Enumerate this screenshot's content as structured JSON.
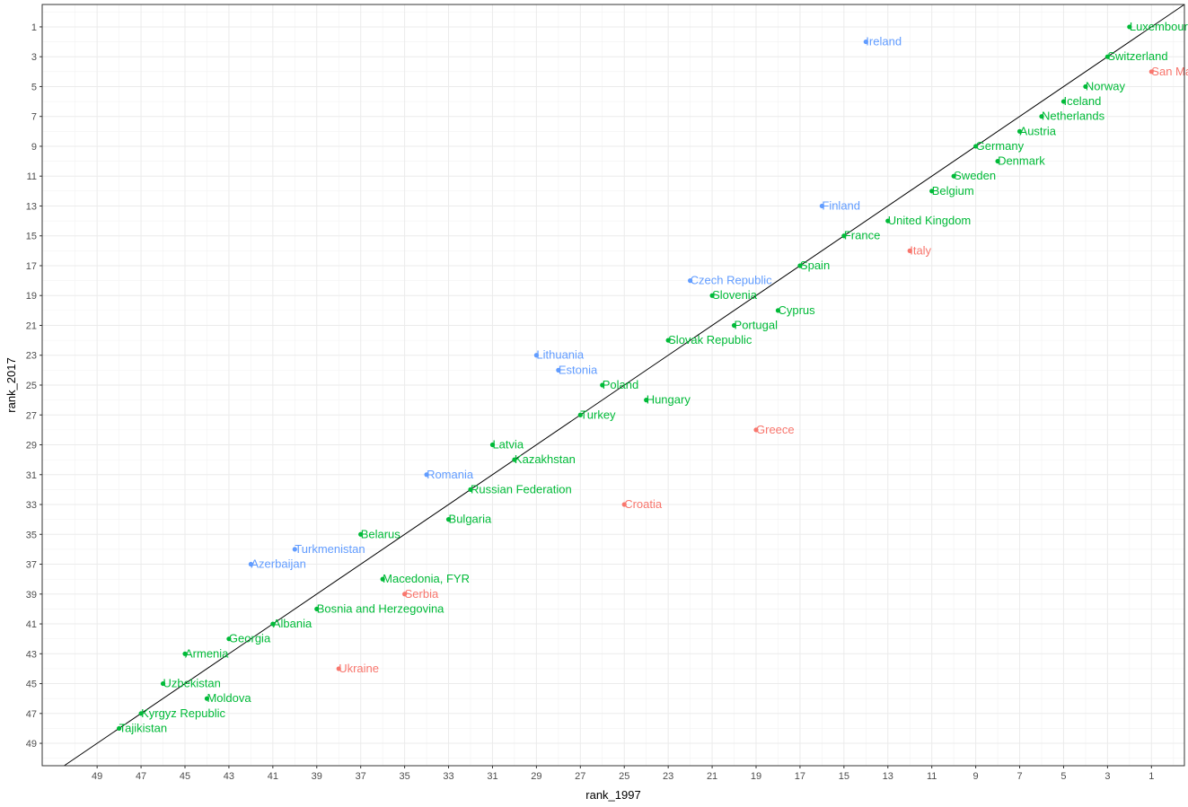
{
  "chart_data": {
    "type": "scatter",
    "xlabel": "rank_1997",
    "ylabel": "rank_2017",
    "x_reversed": true,
    "y_reversed": true,
    "xlim": [
      -0.5,
      51.5
    ],
    "ylim": [
      -0.5,
      50.5
    ],
    "x_ticks": [
      49,
      47,
      45,
      43,
      41,
      39,
      37,
      35,
      33,
      31,
      29,
      27,
      25,
      23,
      21,
      19,
      17,
      15,
      13,
      11,
      9,
      7,
      5,
      3,
      1
    ],
    "y_ticks": [
      1,
      3,
      5,
      7,
      9,
      11,
      13,
      15,
      17,
      19,
      21,
      23,
      25,
      27,
      29,
      31,
      33,
      35,
      37,
      39,
      41,
      43,
      45,
      47,
      49
    ],
    "grid": true,
    "reference_line": "y = x",
    "colors": {
      "green": "#00BA38",
      "blue": "#619CFF",
      "red": "#F8766D"
    },
    "points": [
      {
        "label": "Luxembourg",
        "x": 2,
        "y": 1,
        "color": "green"
      },
      {
        "label": "Ireland",
        "x": 14,
        "y": 2,
        "color": "blue"
      },
      {
        "label": "Switzerland",
        "x": 3,
        "y": 3,
        "color": "green"
      },
      {
        "label": "San Mari",
        "x": 1,
        "y": 4,
        "color": "red"
      },
      {
        "label": "Norway",
        "x": 4,
        "y": 5,
        "color": "green"
      },
      {
        "label": "Iceland",
        "x": 5,
        "y": 6,
        "color": "green"
      },
      {
        "label": "Netherlands",
        "x": 6,
        "y": 7,
        "color": "green"
      },
      {
        "label": "Austria",
        "x": 7,
        "y": 8,
        "color": "green"
      },
      {
        "label": "Germany",
        "x": 9,
        "y": 9,
        "color": "green"
      },
      {
        "label": "Denmark",
        "x": 8,
        "y": 10,
        "color": "green"
      },
      {
        "label": "Sweden",
        "x": 10,
        "y": 11,
        "color": "green"
      },
      {
        "label": "Belgium",
        "x": 11,
        "y": 12,
        "color": "green"
      },
      {
        "label": "Finland",
        "x": 16,
        "y": 13,
        "color": "blue"
      },
      {
        "label": "United Kingdom",
        "x": 13,
        "y": 14,
        "color": "green"
      },
      {
        "label": "France",
        "x": 15,
        "y": 15,
        "color": "green"
      },
      {
        "label": "Italy",
        "x": 12,
        "y": 16,
        "color": "red"
      },
      {
        "label": "Spain",
        "x": 17,
        "y": 17,
        "color": "green"
      },
      {
        "label": "Czech Republic",
        "x": 22,
        "y": 18,
        "color": "blue"
      },
      {
        "label": "Slovenia",
        "x": 21,
        "y": 19,
        "color": "green"
      },
      {
        "label": "Cyprus",
        "x": 18,
        "y": 20,
        "color": "green"
      },
      {
        "label": "Portugal",
        "x": 20,
        "y": 21,
        "color": "green"
      },
      {
        "label": "Slovak Republic",
        "x": 23,
        "y": 22,
        "color": "green"
      },
      {
        "label": "Lithuania",
        "x": 29,
        "y": 23,
        "color": "blue"
      },
      {
        "label": "Estonia",
        "x": 28,
        "y": 24,
        "color": "blue"
      },
      {
        "label": "Poland",
        "x": 26,
        "y": 25,
        "color": "green"
      },
      {
        "label": "Hungary",
        "x": 24,
        "y": 26,
        "color": "green"
      },
      {
        "label": "Turkey",
        "x": 27,
        "y": 27,
        "color": "green"
      },
      {
        "label": "Greece",
        "x": 19,
        "y": 28,
        "color": "red"
      },
      {
        "label": "Latvia",
        "x": 31,
        "y": 29,
        "color": "green"
      },
      {
        "label": "Kazakhstan",
        "x": 30,
        "y": 30,
        "color": "green"
      },
      {
        "label": "Romania",
        "x": 34,
        "y": 31,
        "color": "blue"
      },
      {
        "label": "Russian Federation",
        "x": 32,
        "y": 32,
        "color": "green"
      },
      {
        "label": "Croatia",
        "x": 25,
        "y": 33,
        "color": "red"
      },
      {
        "label": "Bulgaria",
        "x": 33,
        "y": 34,
        "color": "green"
      },
      {
        "label": "Belarus",
        "x": 37,
        "y": 35,
        "color": "green"
      },
      {
        "label": "Turkmenistan",
        "x": 40,
        "y": 36,
        "color": "blue"
      },
      {
        "label": "Azerbaijan",
        "x": 42,
        "y": 37,
        "color": "blue"
      },
      {
        "label": "Macedonia, FYR",
        "x": 36,
        "y": 38,
        "color": "green"
      },
      {
        "label": "Serbia",
        "x": 35,
        "y": 39,
        "color": "red"
      },
      {
        "label": "Bosnia and Herzegovina",
        "x": 39,
        "y": 40,
        "color": "green"
      },
      {
        "label": "Albania",
        "x": 41,
        "y": 41,
        "color": "green"
      },
      {
        "label": "Georgia",
        "x": 43,
        "y": 42,
        "color": "green"
      },
      {
        "label": "Armenia",
        "x": 45,
        "y": 43,
        "color": "green"
      },
      {
        "label": "Ukraine",
        "x": 38,
        "y": 44,
        "color": "red"
      },
      {
        "label": "Uzbekistan",
        "x": 46,
        "y": 45,
        "color": "green"
      },
      {
        "label": "Moldova",
        "x": 44,
        "y": 46,
        "color": "green"
      },
      {
        "label": "Kyrgyz Republic",
        "x": 47,
        "y": 47,
        "color": "green"
      },
      {
        "label": "Tajikistan",
        "x": 48,
        "y": 48,
        "color": "green"
      }
    ]
  }
}
